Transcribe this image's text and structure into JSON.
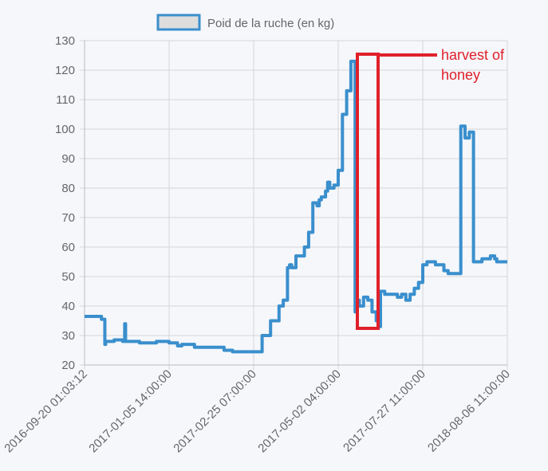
{
  "chart_data": {
    "type": "line",
    "legend": {
      "label": "Poid de la ruche (en kg)",
      "position": "top"
    },
    "colors": {
      "line": "#3a8fcd",
      "legend_fill": "#dddddd",
      "grid": "#d6d6d6",
      "annotation": "#e0202a",
      "background": "#f5f7fb"
    },
    "ylim": [
      20,
      130
    ],
    "yticks": [
      20,
      30,
      40,
      50,
      60,
      70,
      80,
      90,
      100,
      110,
      120,
      130
    ],
    "xticks": [
      "2016-09-20 01:03:12",
      "2017-01-05 14:00:00",
      "2017-02-25 07:00:00",
      "2017-05-02 04:00:00",
      "2017-07-27 11:00:00",
      "2018-08-06 11:00:00"
    ],
    "grid": true,
    "series": [
      {
        "name": "Poid de la ruche (en kg)",
        "x_fraction_of_axis": [
          0.0,
          0.04,
          0.045,
          0.048,
          0.05,
          0.055,
          0.07,
          0.09,
          0.095,
          0.097,
          0.1,
          0.13,
          0.17,
          0.2,
          0.22,
          0.23,
          0.26,
          0.3,
          0.33,
          0.35,
          0.38,
          0.4,
          0.42,
          0.44,
          0.46,
          0.47,
          0.48,
          0.485,
          0.49,
          0.5,
          0.52,
          0.53,
          0.54,
          0.55,
          0.555,
          0.56,
          0.57,
          0.575,
          0.58,
          0.59,
          0.6,
          0.61,
          0.62,
          0.63,
          0.64,
          0.645,
          0.65,
          0.66,
          0.67,
          0.68,
          0.69,
          0.7,
          0.7,
          0.71,
          0.72,
          0.74,
          0.75,
          0.76,
          0.77,
          0.78,
          0.79,
          0.8,
          0.81,
          0.83,
          0.85,
          0.86,
          0.87,
          0.88,
          0.89,
          0.9,
          0.91,
          0.92,
          0.93,
          0.94,
          0.95,
          0.96,
          0.97,
          0.975,
          0.98,
          0.99,
          1.0
        ],
        "values": [
          36.5,
          35.5,
          35.5,
          27,
          28,
          28,
          28.5,
          28,
          34,
          28,
          28,
          27.5,
          28,
          27.5,
          26.5,
          27,
          26,
          26,
          25,
          24.5,
          24.5,
          24.5,
          30,
          35,
          40,
          42,
          53,
          54,
          53,
          57,
          60,
          65,
          75,
          74,
          76,
          77,
          79,
          82,
          80,
          81,
          86,
          105,
          113,
          123,
          38,
          42,
          40,
          43,
          42,
          38,
          35,
          33,
          45,
          44,
          44,
          43,
          44,
          42,
          44,
          46,
          48,
          54,
          55,
          54,
          52,
          51,
          51,
          51,
          101,
          97,
          99,
          55,
          55,
          56,
          56,
          57,
          56,
          55,
          55,
          55,
          55
        ]
      }
    ],
    "annotations": [
      {
        "text": "harvest of honey"
      }
    ]
  }
}
